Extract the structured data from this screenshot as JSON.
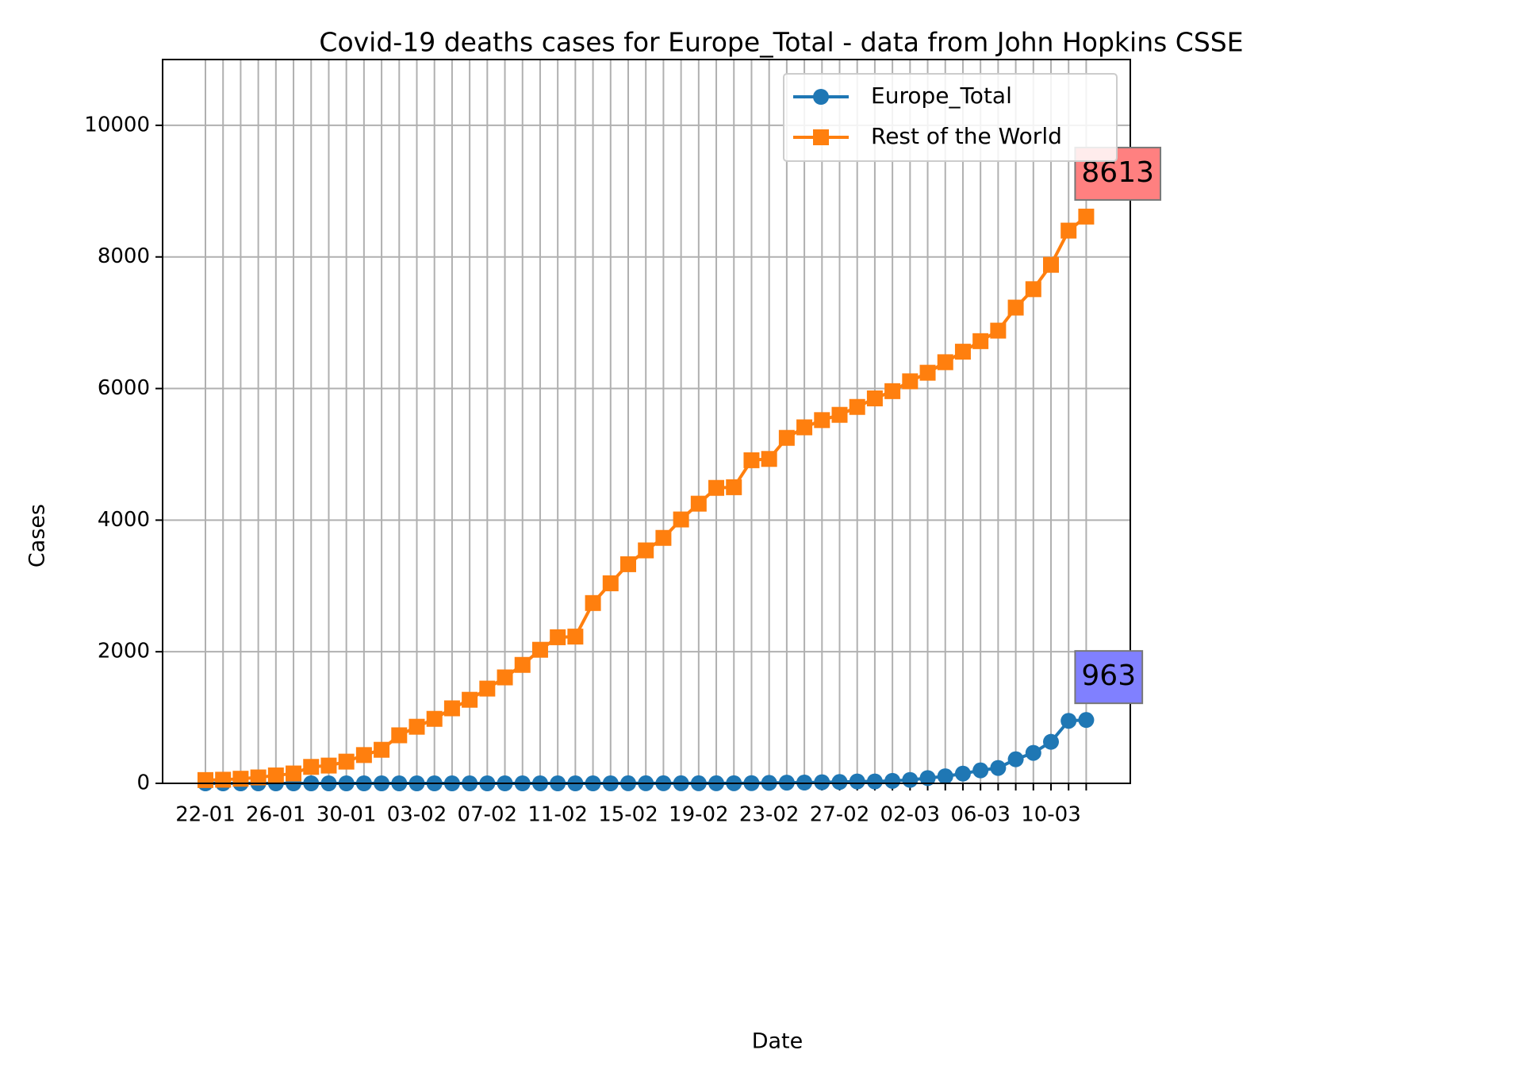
{
  "chart_data": {
    "type": "line",
    "title": "Covid-19 deaths cases for Europe_Total - data from John Hopkins CSSE",
    "x_label": "Date",
    "y_label": "Cases",
    "categories": [
      "22-01",
      null,
      null,
      null,
      "26-01",
      null,
      null,
      null,
      "30-01",
      null,
      null,
      null,
      "03-02",
      null,
      null,
      null,
      "07-02",
      null,
      null,
      null,
      "11-02",
      null,
      null,
      null,
      "15-02",
      null,
      null,
      null,
      "19-02",
      null,
      null,
      null,
      "23-02",
      null,
      null,
      null,
      "27-02",
      null,
      null,
      null,
      "02-03",
      null,
      null,
      null,
      "06-03",
      null,
      null,
      null,
      "10-03",
      null,
      null
    ],
    "series": [
      {
        "name": "Europe_Total",
        "color": "#1f77b4",
        "marker": "circle",
        "values": [
          0,
          0,
          0,
          0,
          0,
          0,
          0,
          0,
          0,
          0,
          0,
          0,
          0,
          0,
          0,
          0,
          0,
          0,
          0,
          0,
          0,
          0,
          0,
          0,
          1,
          1,
          1,
          1,
          1,
          1,
          2,
          3,
          7,
          11,
          12,
          17,
          21,
          29,
          29,
          38,
          52,
          80,
          107,
          148,
          197,
          234,
          366,
          463,
          631,
          950,
          963
        ]
      },
      {
        "name": "Rest of the World",
        "color": "#ff7f0e",
        "marker": "square",
        "values": [
          50,
          55,
          70,
          90,
          120,
          150,
          250,
          270,
          330,
          430,
          510,
          730,
          860,
          980,
          1140,
          1270,
          1440,
          1610,
          1800,
          2030,
          2220,
          2230,
          2740,
          3040,
          3330,
          3540,
          3730,
          4010,
          4250,
          4490,
          4500,
          4910,
          4930,
          5250,
          5410,
          5520,
          5600,
          5720,
          5850,
          5960,
          6110,
          6240,
          6400,
          6560,
          6720,
          6880,
          7230,
          7510,
          7880,
          8400,
          8613
        ]
      }
    ],
    "annotations": [
      {
        "text": "8613",
        "series": "Rest of the World",
        "color": "#ff8080"
      },
      {
        "text": "963",
        "series": "Europe_Total",
        "color": "#8080ff"
      }
    ],
    "ylim": [
      0,
      11000
    ],
    "yticks": [
      0,
      2000,
      4000,
      6000,
      8000,
      10000
    ],
    "grid": true,
    "legend": "upper right"
  }
}
